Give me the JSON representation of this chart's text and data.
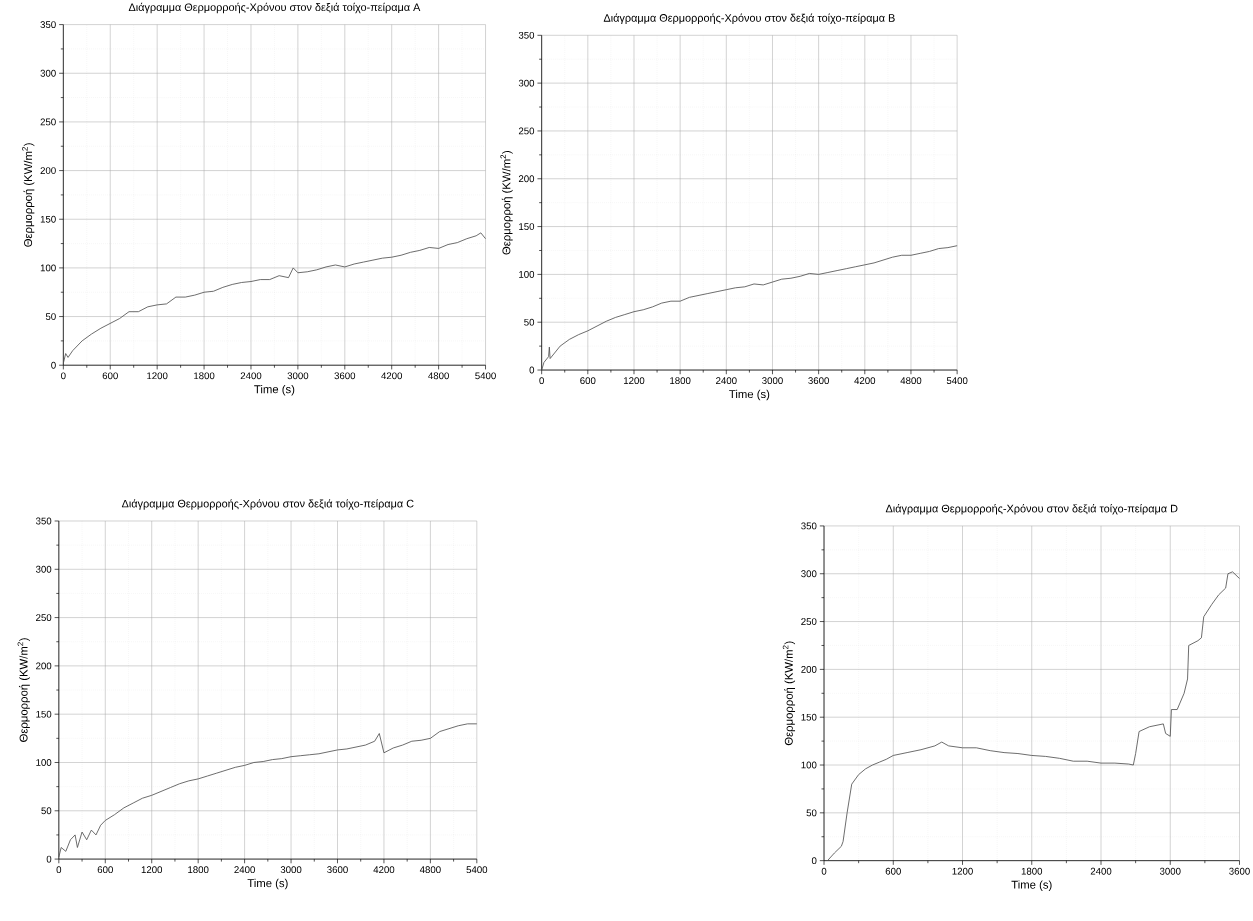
{
  "chart_data": [
    {
      "type": "line",
      "title": "Διάγραμμα Θερμορροής-Χρόνου στον δεξιά τοίχο-πείραμα A",
      "xlabel": "Time (s)",
      "ylabel": "Θερμορροή (KW/m$^{2}$)",
      "color": "#505050",
      "grid": true,
      "xlim": [
        0,
        5400
      ],
      "ylim": [
        0,
        350
      ],
      "xticks": [
        0,
        600,
        1200,
        1800,
        2400,
        3000,
        3600,
        4200,
        4800,
        5400
      ],
      "yticks": [
        0,
        50,
        100,
        150,
        200,
        250,
        300,
        350
      ],
      "x": [
        0,
        30,
        60,
        120,
        240,
        360,
        480,
        600,
        720,
        840,
        960,
        1080,
        1200,
        1320,
        1440,
        1560,
        1680,
        1800,
        1920,
        2040,
        2160,
        2280,
        2400,
        2520,
        2640,
        2760,
        2880,
        2940,
        3000,
        3120,
        3240,
        3360,
        3480,
        3600,
        3720,
        3840,
        3960,
        4080,
        4200,
        4320,
        4440,
        4560,
        4680,
        4800,
        4920,
        5040,
        5160,
        5280,
        5340,
        5400
      ],
      "values": [
        2,
        12,
        8,
        15,
        25,
        32,
        38,
        43,
        48,
        55,
        55,
        60,
        62,
        63,
        70,
        70,
        72,
        75,
        76,
        80,
        83,
        85,
        86,
        88,
        88,
        92,
        90,
        100,
        95,
        96,
        98,
        101,
        103,
        101,
        104,
        106,
        108,
        110,
        111,
        113,
        116,
        118,
        121,
        120,
        124,
        126,
        130,
        133,
        136,
        130
      ]
    },
    {
      "type": "line",
      "title": "Διάγραμμα Θερμορροής-Χρόνου στον δεξιά τοίχο-πείραμα B",
      "xlabel": "Time (s)",
      "ylabel": "Θερμορροή (KW/m$^{2}$)",
      "color": "#505050",
      "grid": true,
      "xlim": [
        0,
        5400
      ],
      "ylim": [
        0,
        350
      ],
      "xticks": [
        0,
        600,
        1200,
        1800,
        2400,
        3000,
        3600,
        4200,
        4800,
        5400
      ],
      "yticks": [
        0,
        50,
        100,
        150,
        200,
        250,
        300,
        350
      ],
      "x": [
        0,
        30,
        90,
        100,
        110,
        240,
        360,
        480,
        600,
        720,
        840,
        960,
        1080,
        1200,
        1320,
        1440,
        1560,
        1680,
        1800,
        1920,
        2040,
        2160,
        2280,
        2400,
        2520,
        2640,
        2760,
        2880,
        3000,
        3120,
        3240,
        3360,
        3480,
        3600,
        3720,
        3840,
        3960,
        4080,
        4200,
        4320,
        4440,
        4560,
        4680,
        4800,
        4920,
        5040,
        5160,
        5280,
        5400
      ],
      "values": [
        0,
        8,
        14,
        24,
        12,
        25,
        32,
        37,
        41,
        46,
        51,
        55,
        58,
        61,
        63,
        66,
        70,
        72,
        72,
        76,
        78,
        80,
        82,
        84,
        86,
        87,
        90,
        89,
        92,
        95,
        96,
        98,
        101,
        100,
        102,
        104,
        106,
        108,
        110,
        112,
        115,
        118,
        120,
        120,
        122,
        124,
        127,
        128,
        130
      ]
    },
    {
      "type": "line",
      "title": "Διάγραμμα Θερμορροής-Χρόνου στον δεξιά τοίχο-πείραμα C",
      "xlabel": "Time (s)",
      "ylabel": "Θερμορροή (KW/m$^{2}$)",
      "color": "#505050",
      "grid": true,
      "xlim": [
        0,
        5400
      ],
      "ylim": [
        0,
        350
      ],
      "xticks": [
        0,
        600,
        1200,
        1800,
        2400,
        3000,
        3600,
        4200,
        4800,
        5400
      ],
      "yticks": [
        0,
        50,
        100,
        150,
        200,
        250,
        300,
        350
      ],
      "x": [
        0,
        30,
        90,
        150,
        210,
        240,
        300,
        360,
        420,
        480,
        540,
        600,
        720,
        840,
        960,
        1080,
        1200,
        1320,
        1440,
        1560,
        1680,
        1800,
        1920,
        2040,
        2160,
        2280,
        2400,
        2520,
        2640,
        2760,
        2880,
        3000,
        3120,
        3240,
        3360,
        3480,
        3600,
        3720,
        3840,
        3960,
        4080,
        4140,
        4200,
        4320,
        4440,
        4560,
        4680,
        4800,
        4920,
        5040,
        5160,
        5280,
        5400
      ],
      "values": [
        2,
        12,
        8,
        20,
        25,
        12,
        28,
        20,
        30,
        25,
        35,
        40,
        46,
        53,
        58,
        63,
        66,
        70,
        74,
        78,
        81,
        83,
        86,
        89,
        92,
        95,
        97,
        100,
        101,
        103,
        104,
        106,
        107,
        108,
        109,
        111,
        113,
        114,
        116,
        118,
        122,
        130,
        110,
        115,
        118,
        122,
        123,
        125,
        132,
        135,
        138,
        140,
        140
      ]
    },
    {
      "type": "line",
      "title": "Διάγραμμα Θερμορροής-Χρόνου στον δεξιά τοίχο-πείραμα D",
      "xlabel": "Time (s)",
      "ylabel": "Θερμορροή (KW/m$^{2}$)",
      "color": "#505050",
      "grid": true,
      "xlim": [
        0,
        3600
      ],
      "ylim": [
        0,
        350
      ],
      "xticks": [
        0,
        600,
        1200,
        1800,
        2400,
        3000,
        3600
      ],
      "yticks": [
        0,
        50,
        100,
        150,
        200,
        250,
        300,
        350
      ],
      "x": [
        30,
        90,
        150,
        165,
        200,
        240,
        300,
        360,
        420,
        480,
        540,
        600,
        720,
        840,
        960,
        1020,
        1080,
        1200,
        1320,
        1440,
        1560,
        1680,
        1800,
        1920,
        2040,
        2160,
        2280,
        2400,
        2520,
        2640,
        2680,
        2700,
        2730,
        2820,
        2940,
        2960,
        3000,
        3010,
        3060,
        3120,
        3150,
        3160,
        3240,
        3270,
        3290,
        3360,
        3420,
        3480,
        3500,
        3540,
        3600
      ],
      "values": [
        0,
        8,
        15,
        20,
        50,
        80,
        90,
        96,
        100,
        103,
        106,
        110,
        113,
        116,
        120,
        124,
        120,
        118,
        118,
        115,
        113,
        112,
        110,
        109,
        107,
        104,
        104,
        102,
        102,
        101,
        100,
        112,
        135,
        140,
        143,
        133,
        130,
        158,
        158,
        175,
        190,
        225,
        230,
        233,
        255,
        268,
        278,
        285,
        300,
        302,
        295
      ]
    }
  ]
}
